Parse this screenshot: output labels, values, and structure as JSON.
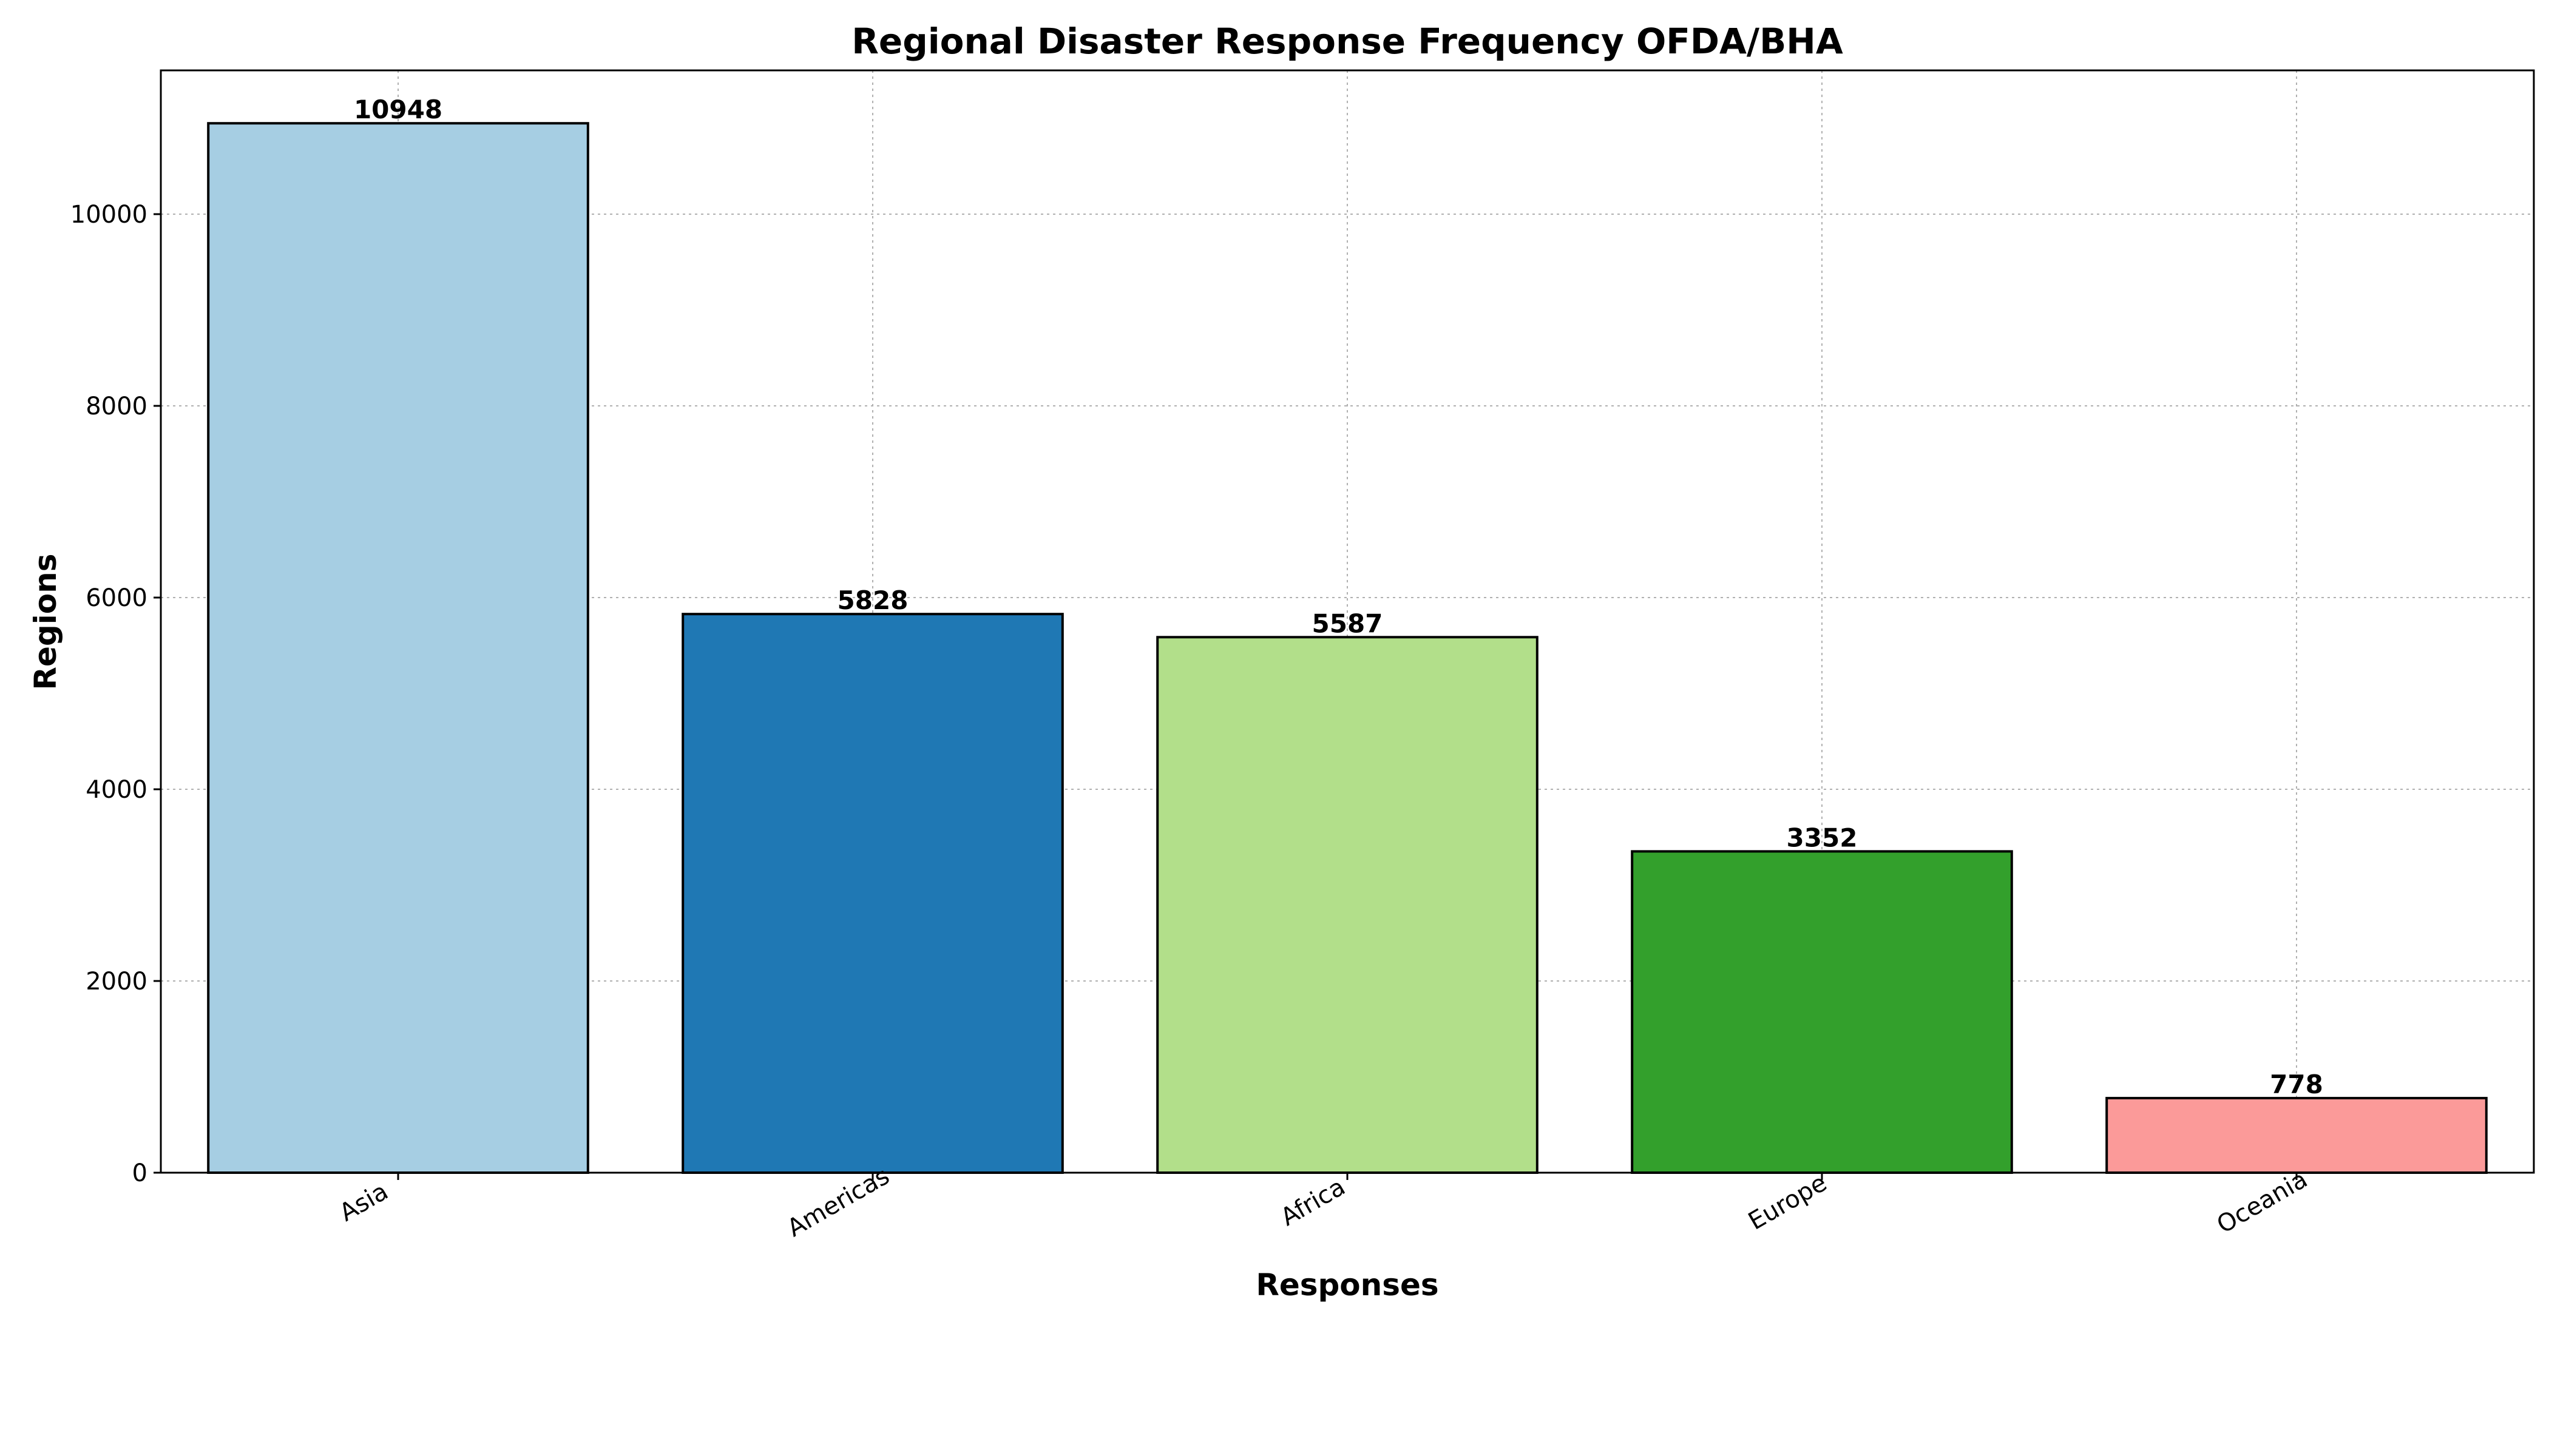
{
  "chart_data": {
    "type": "bar",
    "title": "Regional Disaster Response Frequency OFDA/BHA",
    "xlabel": "Responses",
    "ylabel": "Regions",
    "categories": [
      "Asia",
      "Americas",
      "Africa",
      "Europe",
      "Oceania"
    ],
    "values": [
      10948,
      5828,
      5587,
      3352,
      778
    ],
    "colors": [
      "#a6cee3",
      "#1f78b4",
      "#b2df8a",
      "#33a02c",
      "#fb9a99"
    ],
    "ylim": [
      0,
      11500
    ],
    "yticks": [
      0,
      2000,
      4000,
      6000,
      8000,
      10000
    ],
    "grid": true,
    "legend": "none"
  }
}
